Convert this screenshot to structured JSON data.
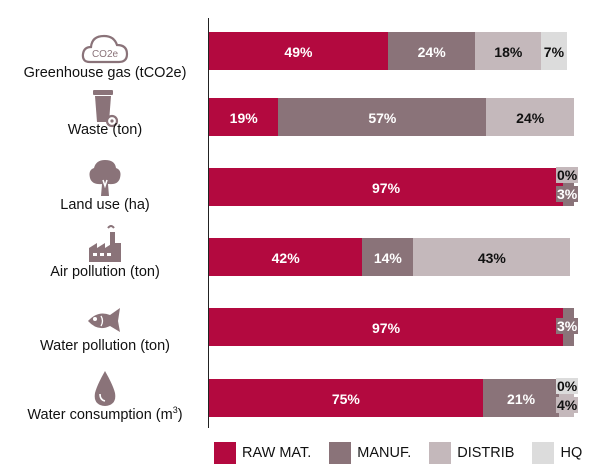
{
  "colors": {
    "raw": "#b3093f",
    "manuf": "#8a7379",
    "distrib": "#c4b8bb",
    "hq": "#dcdcdc"
  },
  "chart_data": {
    "type": "bar",
    "orientation": "horizontal",
    "stacked": true,
    "xlim": [
      0,
      100
    ],
    "categories": [
      "Greenhouse gas (tCO2e)",
      "Waste (ton)",
      "Land use (ha)",
      "Air pollution (ton)",
      "Water pollution (ton)",
      "Water consumption (m3)"
    ],
    "category_icons": [
      "cloud-co2e-icon",
      "trash-bin-icon",
      "tree-icon",
      "factory-icon",
      "fish-icon",
      "water-drop-icon"
    ],
    "icon_text": [
      "CO2e",
      "",
      "",
      "",
      "",
      ""
    ],
    "series": [
      {
        "name": "RAW MAT.",
        "values": [
          49,
          19,
          97,
          42,
          97,
          75
        ]
      },
      {
        "name": "MANUF.",
        "values": [
          24,
          57,
          3,
          14,
          3,
          21
        ]
      },
      {
        "name": "DISTRIB",
        "values": [
          18,
          24,
          0,
          43,
          0,
          4
        ]
      },
      {
        "name": "HQ",
        "values": [
          7,
          0,
          0,
          0,
          0,
          0
        ]
      }
    ],
    "data_labels": [
      [
        "49%",
        "24%",
        "18%",
        "7%"
      ],
      [
        "19%",
        "57%",
        "24%",
        ""
      ],
      [
        "97%",
        "3%",
        "0%",
        ""
      ],
      [
        "42%",
        "14%",
        "43%",
        ""
      ],
      [
        "97%",
        "3%",
        "",
        ""
      ],
      [
        "75%",
        "21%",
        "4%",
        "0%"
      ]
    ],
    "legend_position": "bottom",
    "grid": false
  }
}
